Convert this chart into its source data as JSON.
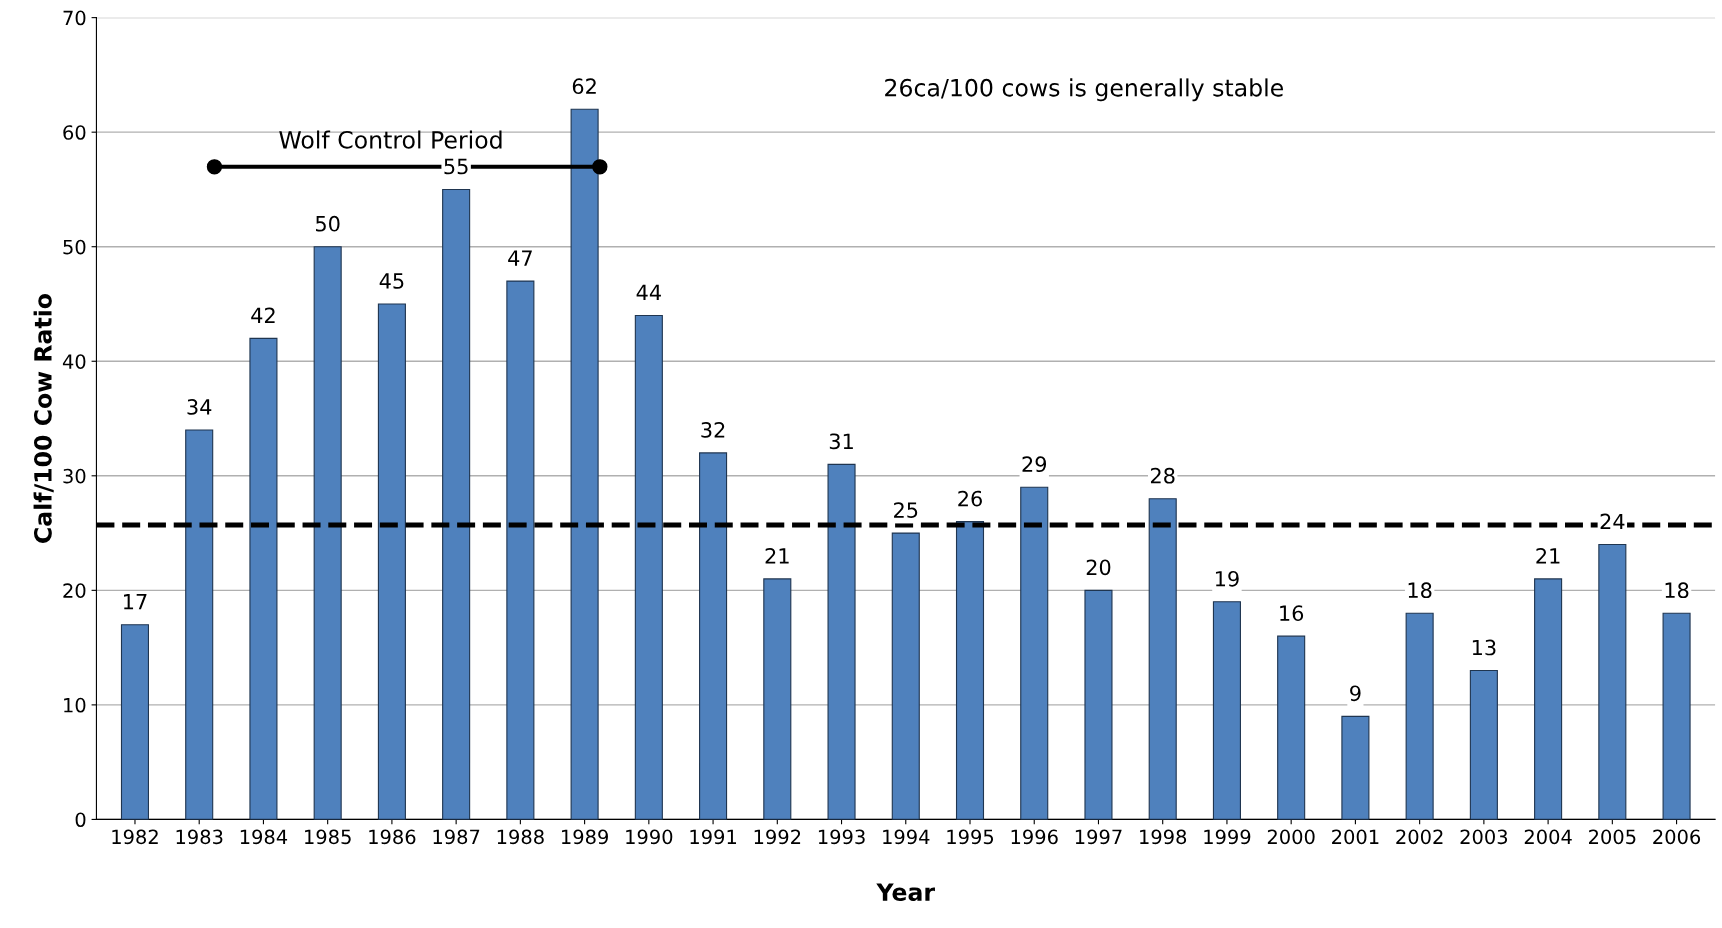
{
  "chart_data": {
    "type": "bar",
    "xlabel": "Year",
    "ylabel": "Calf/100 Cow Ratio",
    "categories": [
      "1982",
      "1983",
      "1984",
      "1985",
      "1986",
      "1987",
      "1988",
      "1989",
      "1990",
      "1991",
      "1992",
      "1993",
      "1994",
      "1995",
      "1996",
      "1997",
      "1998",
      "1999",
      "2000",
      "2001",
      "2002",
      "2003",
      "2004",
      "2005",
      "2006"
    ],
    "series": [
      {
        "color": "#4f81bd",
        "values": [
          17,
          34,
          42,
          50,
          45,
          55,
          47,
          62,
          44,
          32,
          21,
          31,
          25,
          26,
          29,
          20,
          28,
          19,
          16,
          9,
          18,
          13,
          21,
          24,
          18
        ]
      }
    ],
    "data_labels": true,
    "ylim": [
      0,
      70
    ],
    "yticks": [
      0,
      10,
      20,
      30,
      40,
      50,
      60,
      70
    ],
    "grid": "y",
    "ref_lines": [
      {
        "axis": "y",
        "value": 25.7,
        "color": "#000000",
        "line_style": "dashed"
      }
    ],
    "annotations": [
      "Wolf Control Period",
      "26ca/100 cows is generally stable"
    ]
  }
}
